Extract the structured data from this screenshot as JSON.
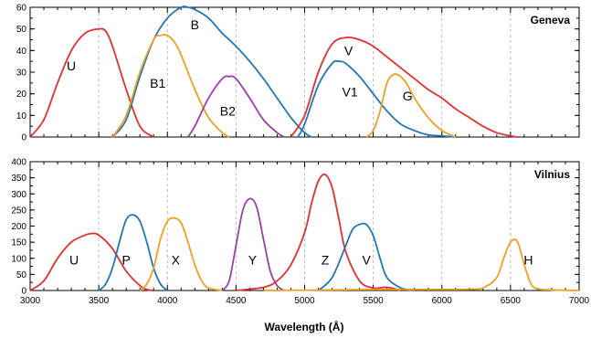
{
  "chart_data": [
    {
      "type": "line",
      "title": "Geneva",
      "xlim": [
        3000,
        7000
      ],
      "ylim": [
        0,
        60
      ],
      "yticks": [
        0,
        10,
        20,
        30,
        40,
        50,
        60
      ],
      "grid": "vertical dashed at 3500, 4000, 4500, 5000, 5500, 6000, 6500",
      "series": [
        {
          "name": "U",
          "color": "#e03030",
          "x": [
            3000,
            3100,
            3200,
            3300,
            3400,
            3500,
            3550,
            3600,
            3700,
            3800,
            3900
          ],
          "y": [
            0,
            8,
            25,
            40,
            48,
            50,
            49,
            42,
            22,
            5,
            0
          ]
        },
        {
          "name": "B",
          "color": "#1f78b4",
          "x": [
            3600,
            3700,
            3800,
            3900,
            4000,
            4100,
            4150,
            4200,
            4300,
            4400,
            4500,
            4600,
            4700,
            4800,
            4900,
            5000,
            5050
          ],
          "y": [
            0,
            8,
            28,
            45,
            55,
            60,
            60,
            59,
            55,
            48,
            42,
            35,
            27,
            18,
            9,
            2,
            0
          ]
        },
        {
          "name": "B1",
          "color": "#f0a020",
          "x": [
            3600,
            3700,
            3800,
            3900,
            3950,
            4000,
            4050,
            4100,
            4200,
            4300,
            4400,
            4450
          ],
          "y": [
            0,
            10,
            30,
            45,
            47,
            47,
            44,
            38,
            22,
            9,
            2,
            0
          ]
        },
        {
          "name": "B2",
          "color": "#9b3fa8",
          "x": [
            4150,
            4200,
            4300,
            4400,
            4450,
            4500,
            4600,
            4700,
            4800,
            4850
          ],
          "y": [
            0,
            5,
            18,
            27,
            28,
            27,
            18,
            8,
            2,
            0
          ]
        },
        {
          "name": "V",
          "color": "#e03030",
          "x": [
            4900,
            5000,
            5100,
            5200,
            5300,
            5400,
            5500,
            5600,
            5700,
            5800,
            5900,
            6000,
            6100,
            6200,
            6300,
            6400,
            6500,
            6550
          ],
          "y": [
            0,
            10,
            30,
            43,
            46,
            45,
            42,
            37,
            32,
            27,
            22,
            18,
            13,
            9,
            5,
            2,
            0.5,
            0
          ]
        },
        {
          "name": "V1",
          "color": "#1f78b4",
          "x": [
            4950,
            5000,
            5100,
            5200,
            5250,
            5300,
            5400,
            5500,
            5600,
            5700,
            5800,
            5900,
            6000,
            6100
          ],
          "y": [
            0,
            6,
            24,
            34,
            35,
            34,
            28,
            20,
            12,
            6,
            3,
            1,
            0.5,
            0
          ]
        },
        {
          "name": "G",
          "color": "#f0a020",
          "x": [
            5450,
            5500,
            5550,
            5600,
            5650,
            5700,
            5750,
            5800,
            5900,
            6000,
            6100
          ],
          "y": [
            0,
            3,
            12,
            25,
            29,
            28,
            24,
            18,
            9,
            3,
            0
          ]
        }
      ]
    },
    {
      "type": "line",
      "title": "Vilnius",
      "xlabel": "Wavelength (Å)",
      "xlim": [
        3000,
        7000
      ],
      "ylim": [
        0,
        400
      ],
      "xticks": [
        3000,
        3500,
        4000,
        4500,
        5000,
        5500,
        6000,
        6500,
        7000
      ],
      "yticks": [
        0,
        50,
        100,
        150,
        200,
        250,
        300,
        350,
        400
      ],
      "grid": "vertical dashed at 3500, 4000, 4500, 5000, 5500, 6000, 6500",
      "series": [
        {
          "name": "U",
          "color": "#e03030",
          "x": [
            3000,
            3100,
            3200,
            3300,
            3400,
            3450,
            3500,
            3600,
            3700,
            3800,
            3850,
            3900
          ],
          "y": [
            0,
            30,
            100,
            150,
            172,
            177,
            172,
            130,
            60,
            15,
            3,
            0
          ]
        },
        {
          "name": "P",
          "color": "#1f78b4",
          "x": [
            3500,
            3550,
            3600,
            3650,
            3700,
            3750,
            3800,
            3850,
            3900,
            3950,
            4000
          ],
          "y": [
            0,
            20,
            70,
            150,
            220,
            235,
            215,
            150,
            70,
            20,
            0
          ]
        },
        {
          "name": "X",
          "color": "#f0a020",
          "x": [
            3800,
            3850,
            3900,
            3950,
            4000,
            4050,
            4100,
            4150,
            4200,
            4250,
            4300,
            4400
          ],
          "y": [
            0,
            20,
            70,
            160,
            215,
            225,
            210,
            150,
            80,
            30,
            8,
            0
          ]
        },
        {
          "name": "Y",
          "color": "#9b3fa8",
          "x": [
            4400,
            4450,
            4500,
            4550,
            4600,
            4650,
            4700,
            4750,
            4800,
            4850
          ],
          "y": [
            0,
            30,
            140,
            250,
            285,
            260,
            160,
            60,
            15,
            0
          ]
        },
        {
          "name": "Z",
          "color": "#e03030",
          "x": [
            4500,
            4700,
            4800,
            4900,
            5000,
            5050,
            5100,
            5150,
            5200,
            5250,
            5300,
            5400,
            5500,
            5600,
            5700
          ],
          "y": [
            0,
            10,
            30,
            80,
            180,
            270,
            340,
            360,
            320,
            220,
            120,
            30,
            8,
            10,
            0
          ]
        },
        {
          "name": "V",
          "color": "#1f78b4",
          "x": [
            5100,
            5200,
            5300,
            5350,
            5400,
            5450,
            5500,
            5550,
            5600,
            5700,
            5800
          ],
          "y": [
            0,
            40,
            140,
            190,
            205,
            205,
            170,
            100,
            40,
            8,
            0
          ]
        },
        {
          "name": "H",
          "color": "#f0a020",
          "x": [
            4700,
            5000,
            5500,
            6000,
            6200,
            6300,
            6400,
            6450,
            6500,
            6550,
            6600,
            6650,
            6700,
            6800,
            7000
          ],
          "y": [
            0,
            1,
            3,
            3,
            4,
            8,
            40,
            100,
            150,
            152,
            80,
            20,
            5,
            2,
            0
          ]
        }
      ]
    }
  ]
}
